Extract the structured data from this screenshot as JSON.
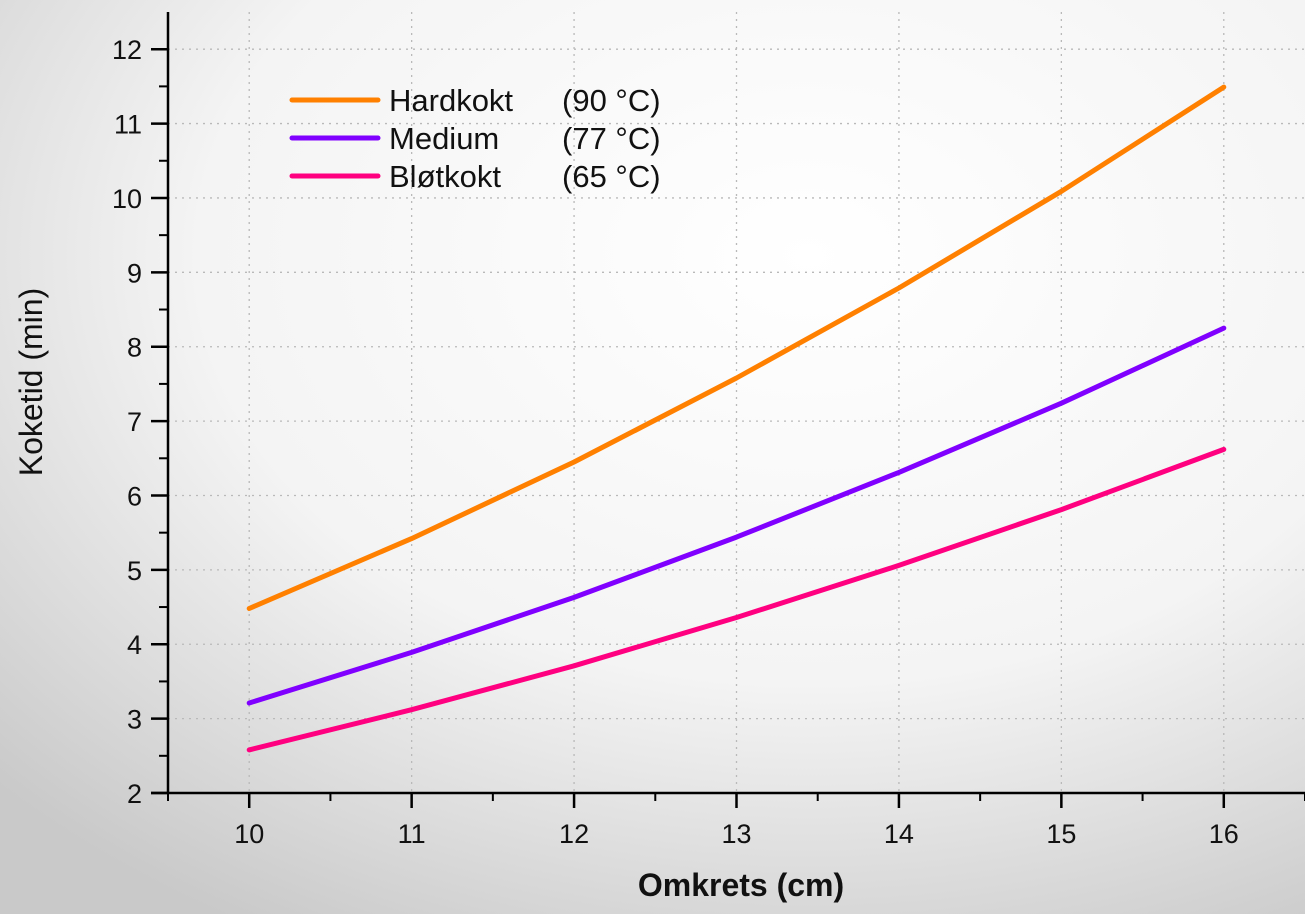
{
  "chart_data": {
    "type": "line",
    "title": "",
    "xlabel": "Omkrets (cm)",
    "ylabel": "Koketid (min)",
    "xlim": [
      9.5,
      16.5
    ],
    "ylim": [
      2,
      12.5
    ],
    "x_ticks": [
      10,
      11,
      12,
      13,
      14,
      15,
      16
    ],
    "y_ticks": [
      2,
      3,
      4,
      5,
      6,
      7,
      8,
      9,
      10,
      11,
      12
    ],
    "grid": true,
    "legend_position": "top-left",
    "x": [
      10,
      11,
      12,
      13,
      14,
      15,
      16
    ],
    "series": [
      {
        "name": "Hardkokt",
        "temp": "(90 °C)",
        "color": "#ff8000",
        "values": [
          4.48,
          5.42,
          6.45,
          7.58,
          8.79,
          10.09,
          11.49
        ]
      },
      {
        "name": "Medium",
        "temp": "(77 °C)",
        "color": "#8000ff",
        "values": [
          3.21,
          3.89,
          4.63,
          5.44,
          6.31,
          7.24,
          8.25
        ]
      },
      {
        "name": "Bløtkokt",
        "temp": "(65 °C)",
        "color": "#ff0080",
        "values": [
          2.58,
          3.12,
          3.71,
          4.36,
          5.06,
          5.81,
          6.62
        ]
      }
    ]
  }
}
